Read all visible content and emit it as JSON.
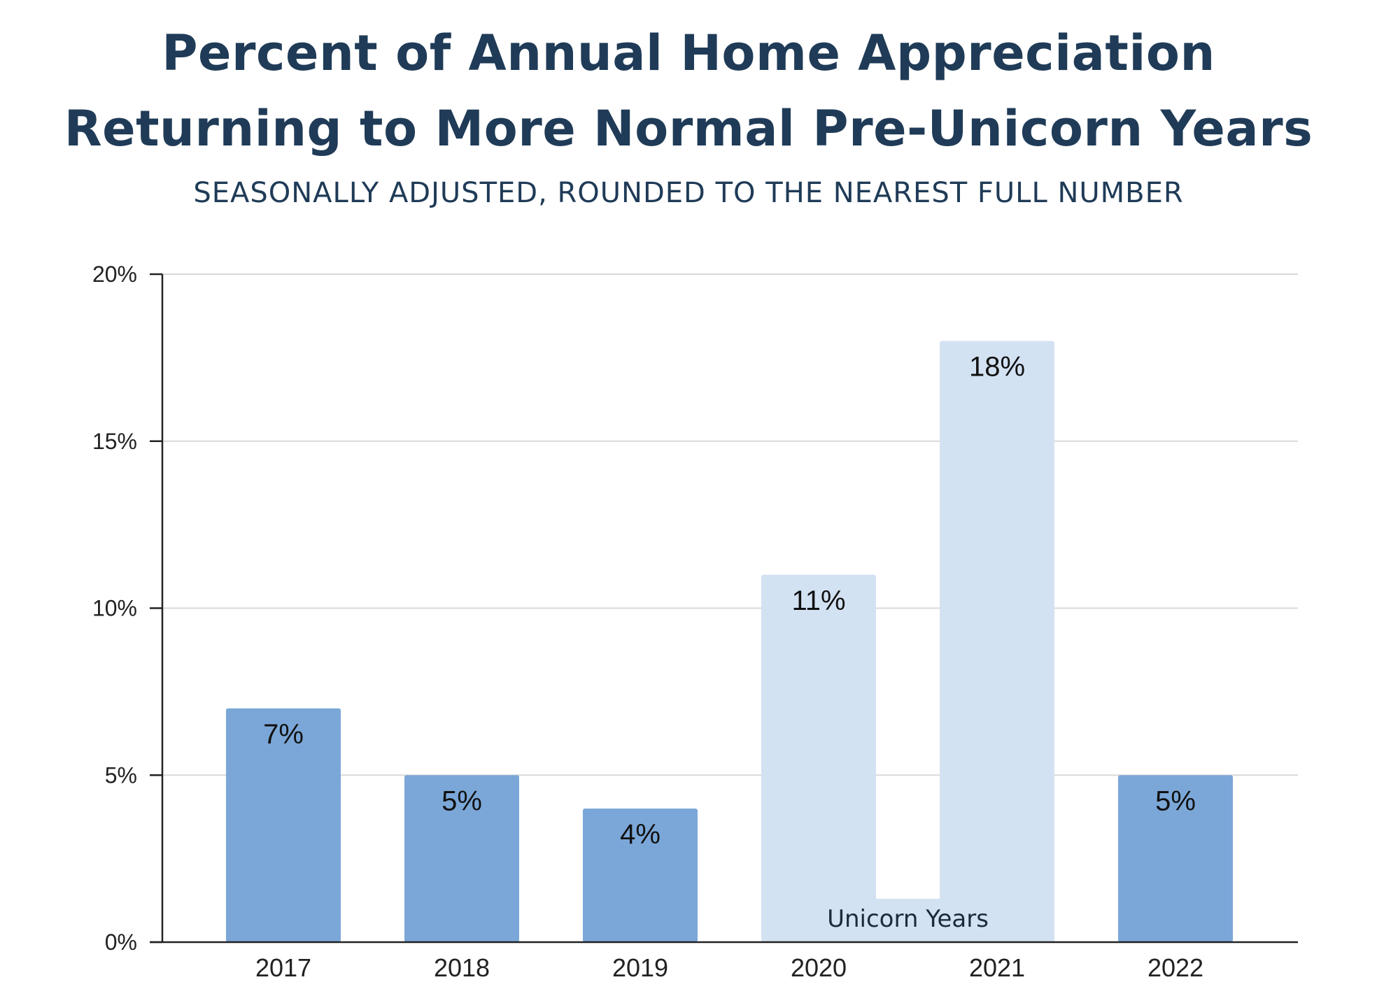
{
  "chart_data": {
    "type": "bar",
    "title": "Percent of Annual Home Appreciation Returning to More Normal Pre-Unicorn Years",
    "title_lines": [
      "Percent of Annual Home Appreciation",
      "Returning to More Normal Pre-Unicorn Years"
    ],
    "subtitle": "SEASONALLY ADJUSTED, ROUNDED TO THE NEAREST FULL NUMBER",
    "xlabel": "",
    "ylabel": "",
    "categories": [
      "2017",
      "2018",
      "2019",
      "2020",
      "2021",
      "2022"
    ],
    "values": [
      7,
      5,
      4,
      11,
      18,
      5
    ],
    "data_labels": [
      "7%",
      "5%",
      "4%",
      "11%",
      "18%",
      "5%"
    ],
    "highlighted": [
      false,
      false,
      false,
      true,
      true,
      false
    ],
    "ylim": [
      0,
      20
    ],
    "yticks": [
      0,
      5,
      10,
      15,
      20
    ],
    "ytick_labels": [
      "0%",
      "5%",
      "10%",
      "15%",
      "20%"
    ],
    "grid": true,
    "annotation": {
      "text": "Unicorn Years",
      "span": [
        "2020",
        "2021"
      ]
    },
    "colors": {
      "normal": "#7ba7d8",
      "unicorn": "#d3e2f3",
      "grid": "#d9d9d9",
      "axis": "#222222",
      "title": "#1f3b57"
    }
  }
}
